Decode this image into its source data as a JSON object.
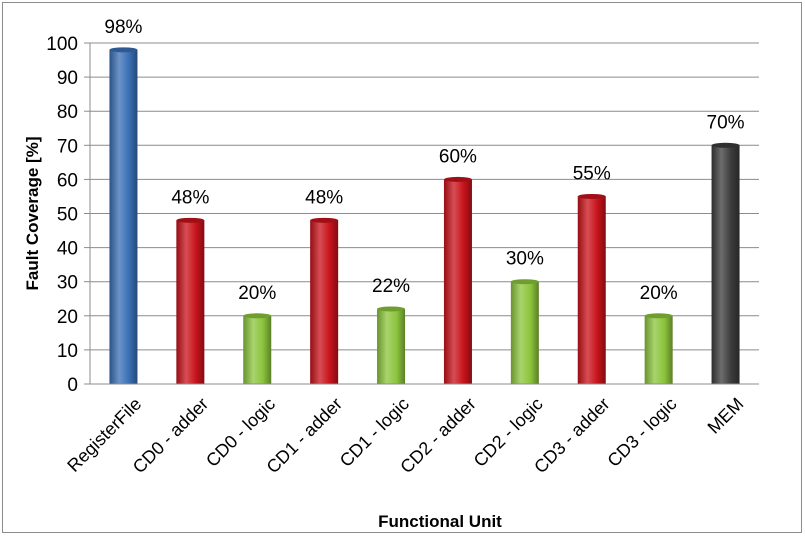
{
  "chart_data": {
    "type": "bar",
    "categories": [
      "RegisterFile",
      "CD0 - adder",
      "CD0 - logic",
      "CD1 - adder",
      "CD1 - logic",
      "CD2 - adder",
      "CD2 - logic",
      "CD3 - adder",
      "CD3 - logic",
      "MEM"
    ],
    "values": [
      98,
      48,
      20,
      48,
      22,
      60,
      30,
      55,
      20,
      70
    ],
    "data_labels": [
      "98%",
      "48%",
      "20%",
      "48%",
      "22%",
      "60%",
      "30%",
      "55%",
      "20%",
      "70%"
    ],
    "bar_colors": [
      "#3a6fb5",
      "#c8131b",
      "#8cc43c",
      "#c8131b",
      "#8cc43c",
      "#c8131b",
      "#8cc43c",
      "#c8131b",
      "#8cc43c",
      "#3c3c3c"
    ],
    "title": "",
    "xlabel": "Functional Unit",
    "ylabel": "Fault Coverage [%]",
    "ylim": [
      0,
      100
    ],
    "yticks": [
      "0",
      "10",
      "20",
      "30",
      "40",
      "50",
      "60",
      "70",
      "80",
      "90",
      "100"
    ],
    "grid": true,
    "legend": "none"
  }
}
